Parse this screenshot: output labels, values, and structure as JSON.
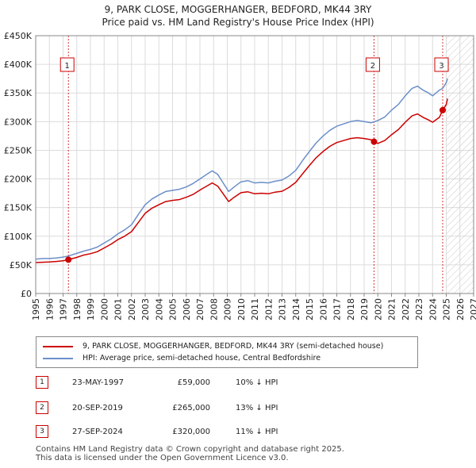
{
  "title": {
    "line1": "9, PARK CLOSE, MOGGERHANGER, BEDFORD, MK44 3RY",
    "line2": "Price paid vs. HM Land Registry's House Price Index (HPI)"
  },
  "colors": {
    "price_line": "#cc0000",
    "hpi_line": "#6b8fc9",
    "marker": "#cc0000",
    "grid": "#dcdcdc",
    "plot_bg": "#ffffff"
  },
  "chart_data": {
    "type": "line",
    "xlim": [
      1995,
      2027
    ],
    "ylim": [
      0,
      450000
    ],
    "x_ticks": [
      "1995",
      "1996",
      "1997",
      "1998",
      "1999",
      "2000",
      "2001",
      "2002",
      "2003",
      "2004",
      "2005",
      "2006",
      "2007",
      "2008",
      "2009",
      "2010",
      "2011",
      "2012",
      "2013",
      "2014",
      "2015",
      "2016",
      "2017",
      "2018",
      "2019",
      "2020",
      "2021",
      "2022",
      "2023",
      "2024",
      "2025",
      "2026",
      "2027"
    ],
    "y_ticks": [
      {
        "value": 0,
        "label": "£0"
      },
      {
        "value": 50000,
        "label": "£50K"
      },
      {
        "value": 100000,
        "label": "£100K"
      },
      {
        "value": 150000,
        "label": "£150K"
      },
      {
        "value": 200000,
        "label": "£200K"
      },
      {
        "value": 250000,
        "label": "£250K"
      },
      {
        "value": 300000,
        "label": "£300K"
      },
      {
        "value": 350000,
        "label": "£350K"
      },
      {
        "value": 400000,
        "label": "£400K"
      },
      {
        "value": 450000,
        "label": "£450K"
      }
    ],
    "hatch_from": 2025.0,
    "series": [
      {
        "name": "hpi",
        "points": [
          [
            1995.0,
            60000
          ],
          [
            1995.5,
            61000
          ],
          [
            1996.0,
            61000
          ],
          [
            1996.5,
            62000
          ],
          [
            1997.0,
            63500
          ],
          [
            1997.4,
            65500
          ],
          [
            1998.0,
            70000
          ],
          [
            1998.5,
            74000
          ],
          [
            1999.0,
            77000
          ],
          [
            1999.5,
            81000
          ],
          [
            2000.0,
            88000
          ],
          [
            2000.5,
            95000
          ],
          [
            2001.0,
            104000
          ],
          [
            2001.5,
            111000
          ],
          [
            2002.0,
            120000
          ],
          [
            2002.5,
            138000
          ],
          [
            2003.0,
            155000
          ],
          [
            2003.5,
            165000
          ],
          [
            2004.0,
            172000
          ],
          [
            2004.5,
            178000
          ],
          [
            2005.0,
            180000
          ],
          [
            2005.5,
            182000
          ],
          [
            2006.0,
            186000
          ],
          [
            2006.5,
            192000
          ],
          [
            2007.0,
            200000
          ],
          [
            2007.5,
            208000
          ],
          [
            2007.9,
            214000
          ],
          [
            2008.3,
            208000
          ],
          [
            2008.7,
            193000
          ],
          [
            2009.1,
            178000
          ],
          [
            2009.5,
            186000
          ],
          [
            2010.0,
            195000
          ],
          [
            2010.5,
            197000
          ],
          [
            2011.0,
            193000
          ],
          [
            2011.5,
            194000
          ],
          [
            2012.0,
            193000
          ],
          [
            2012.5,
            196000
          ],
          [
            2013.0,
            198000
          ],
          [
            2013.5,
            205000
          ],
          [
            2014.0,
            215000
          ],
          [
            2014.5,
            232000
          ],
          [
            2015.0,
            248000
          ],
          [
            2015.5,
            263000
          ],
          [
            2016.0,
            275000
          ],
          [
            2016.5,
            285000
          ],
          [
            2017.0,
            292000
          ],
          [
            2017.5,
            296000
          ],
          [
            2018.0,
            300000
          ],
          [
            2018.5,
            302000
          ],
          [
            2019.0,
            300000
          ],
          [
            2019.5,
            298000
          ],
          [
            2020.0,
            302000
          ],
          [
            2020.5,
            308000
          ],
          [
            2021.0,
            320000
          ],
          [
            2021.5,
            330000
          ],
          [
            2022.0,
            345000
          ],
          [
            2022.5,
            358000
          ],
          [
            2022.9,
            362000
          ],
          [
            2023.3,
            355000
          ],
          [
            2023.7,
            350000
          ],
          [
            2024.0,
            345000
          ],
          [
            2024.5,
            355000
          ],
          [
            2024.74,
            358000
          ],
          [
            2025.0,
            368000
          ],
          [
            2025.1,
            375000
          ]
        ]
      },
      {
        "name": "price_paid",
        "points": [
          [
            1995.0,
            54000
          ],
          [
            1995.5,
            54500
          ],
          [
            1996.0,
            55000
          ],
          [
            1996.5,
            56000
          ],
          [
            1997.0,
            57000
          ],
          [
            1997.39,
            59000
          ],
          [
            1998.0,
            63000
          ],
          [
            1998.5,
            67000
          ],
          [
            1999.0,
            69500
          ],
          [
            1999.5,
            73000
          ],
          [
            2000.0,
            79500
          ],
          [
            2000.5,
            86000
          ],
          [
            2001.0,
            94000
          ],
          [
            2001.5,
            100000
          ],
          [
            2002.0,
            108000
          ],
          [
            2002.5,
            124000
          ],
          [
            2003.0,
            140000
          ],
          [
            2003.5,
            149000
          ],
          [
            2004.0,
            155000
          ],
          [
            2004.5,
            160500
          ],
          [
            2005.0,
            162500
          ],
          [
            2005.5,
            164000
          ],
          [
            2006.0,
            168000
          ],
          [
            2006.5,
            173000
          ],
          [
            2007.0,
            180500
          ],
          [
            2007.5,
            187500
          ],
          [
            2007.9,
            193000
          ],
          [
            2008.3,
            187500
          ],
          [
            2008.7,
            174000
          ],
          [
            2009.1,
            160500
          ],
          [
            2009.5,
            168000
          ],
          [
            2010.0,
            176000
          ],
          [
            2010.5,
            177500
          ],
          [
            2011.0,
            174000
          ],
          [
            2011.5,
            175000
          ],
          [
            2012.0,
            174000
          ],
          [
            2012.5,
            177000
          ],
          [
            2013.0,
            178500
          ],
          [
            2013.5,
            185000
          ],
          [
            2014.0,
            194000
          ],
          [
            2014.5,
            209000
          ],
          [
            2015.0,
            223500
          ],
          [
            2015.5,
            237000
          ],
          [
            2016.0,
            248000
          ],
          [
            2016.5,
            257000
          ],
          [
            2017.0,
            263500
          ],
          [
            2017.5,
            267000
          ],
          [
            2018.0,
            270500
          ],
          [
            2018.5,
            272000
          ],
          [
            2019.0,
            270500
          ],
          [
            2019.5,
            268500
          ],
          [
            2019.72,
            265000
          ],
          [
            2020.0,
            262000
          ],
          [
            2020.5,
            267000
          ],
          [
            2021.0,
            277000
          ],
          [
            2021.5,
            286000
          ],
          [
            2022.0,
            299000
          ],
          [
            2022.5,
            310000
          ],
          [
            2022.9,
            313500
          ],
          [
            2023.3,
            307500
          ],
          [
            2023.7,
            303000
          ],
          [
            2024.0,
            299000
          ],
          [
            2024.5,
            307500
          ],
          [
            2024.74,
            320000
          ],
          [
            2025.0,
            330000
          ],
          [
            2025.1,
            340000
          ]
        ]
      }
    ],
    "markers": [
      {
        "label": "1",
        "x": 1997.39,
        "y": 59000
      },
      {
        "label": "2",
        "x": 2019.72,
        "y": 265000
      },
      {
        "label": "3",
        "x": 2024.74,
        "y": 320000
      }
    ]
  },
  "legend": {
    "price_label": "9, PARK CLOSE, MOGGERHANGER, BEDFORD, MK44 3RY (semi-detached house)",
    "hpi_label": "HPI: Average price, semi-detached house, Central Bedfordshire"
  },
  "transactions": [
    {
      "num": "1",
      "date": "23-MAY-1997",
      "price": "£59,000",
      "hpi": "10% ↓ HPI"
    },
    {
      "num": "2",
      "date": "20-SEP-2019",
      "price": "£265,000",
      "hpi": "13% ↓ HPI"
    },
    {
      "num": "3",
      "date": "27-SEP-2024",
      "price": "£320,000",
      "hpi": "11% ↓ HPI"
    }
  ],
  "footer": {
    "line1": "Contains HM Land Registry data © Crown copyright and database right 2025.",
    "line2": "This data is licensed under the Open Government Licence v3.0."
  }
}
